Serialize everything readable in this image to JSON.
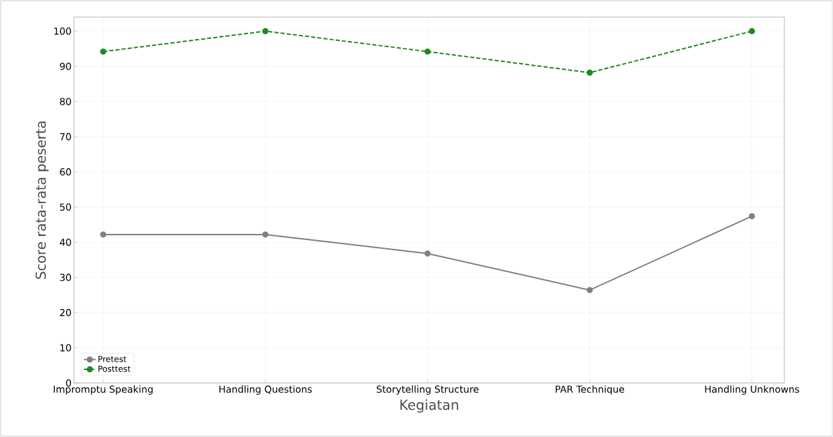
{
  "chart_data": {
    "type": "line",
    "xlabel": "Kegiatan",
    "ylabel": "Score rata-rata peserta",
    "categories": [
      "Impromptu Speaking",
      "Handling Questions",
      "Storytelling Structure",
      "PAR Technique",
      "Handling Unknowns"
    ],
    "series": [
      {
        "name": "Pretest",
        "color": "#808080",
        "values": [
          42.2,
          42.2,
          36.8,
          26.4,
          47.4
        ],
        "line_style": "solid"
      },
      {
        "name": "Posttest",
        "color": "#1f8a1f",
        "values": [
          94.2,
          100,
          94.2,
          88.2,
          100
        ],
        "line_style": "dashed"
      }
    ],
    "ylim": [
      0,
      104
    ],
    "yticks": [
      0,
      10,
      20,
      30,
      40,
      50,
      60,
      70,
      80,
      90,
      100
    ],
    "grid": true,
    "legend": "bottom left",
    "marker": "circle"
  }
}
